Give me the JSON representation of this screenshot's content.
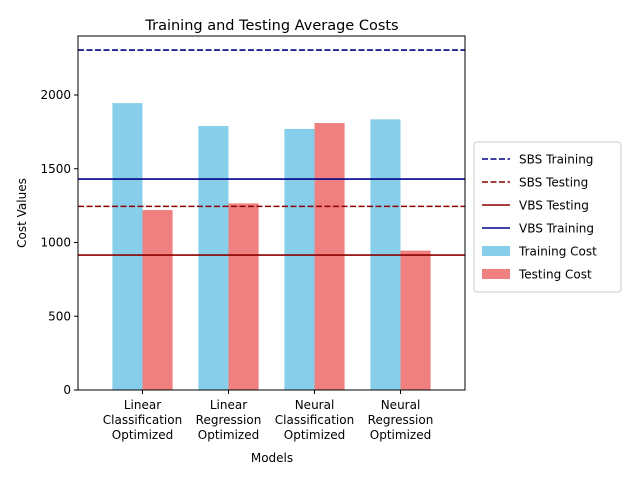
{
  "chart_data": {
    "type": "bar",
    "title": "Training and Testing Average Costs",
    "xlabel": "Models",
    "ylabel": "Cost Values",
    "ylim": [
      0,
      2400
    ],
    "yticks": [
      0,
      500,
      1000,
      1500,
      2000
    ],
    "grid": false,
    "legend_position": "right-outside",
    "categories": [
      [
        "Linear",
        "Classification",
        "Optimized"
      ],
      [
        "Linear",
        "Regression",
        "Optimized"
      ],
      [
        "Neural",
        "Classification",
        "Optimized"
      ],
      [
        "Neural",
        "Regression",
        "Optimized"
      ]
    ],
    "series": [
      {
        "name": "Training Cost",
        "color": "#87ceeb",
        "values": [
          1945,
          1790,
          1770,
          1835
        ]
      },
      {
        "name": "Testing Cost",
        "color": "#f08080",
        "values": [
          1220,
          1265,
          1810,
          945
        ]
      }
    ],
    "reference_lines": [
      {
        "name": "SBS Training",
        "value": 2305,
        "color": "#00008b",
        "style": "dashed"
      },
      {
        "name": "SBS Testing",
        "value": 1245,
        "color": "#8b0000",
        "style": "dashed"
      },
      {
        "name": "VBS Testing",
        "value": 915,
        "color": "#8b0000",
        "style": "solid"
      },
      {
        "name": "VBS Training",
        "value": 1430,
        "color": "#00008b",
        "style": "solid"
      }
    ],
    "legend_order": [
      "SBS Training",
      "SBS Testing",
      "VBS Testing",
      "VBS Training",
      "Training Cost",
      "Testing Cost"
    ]
  }
}
